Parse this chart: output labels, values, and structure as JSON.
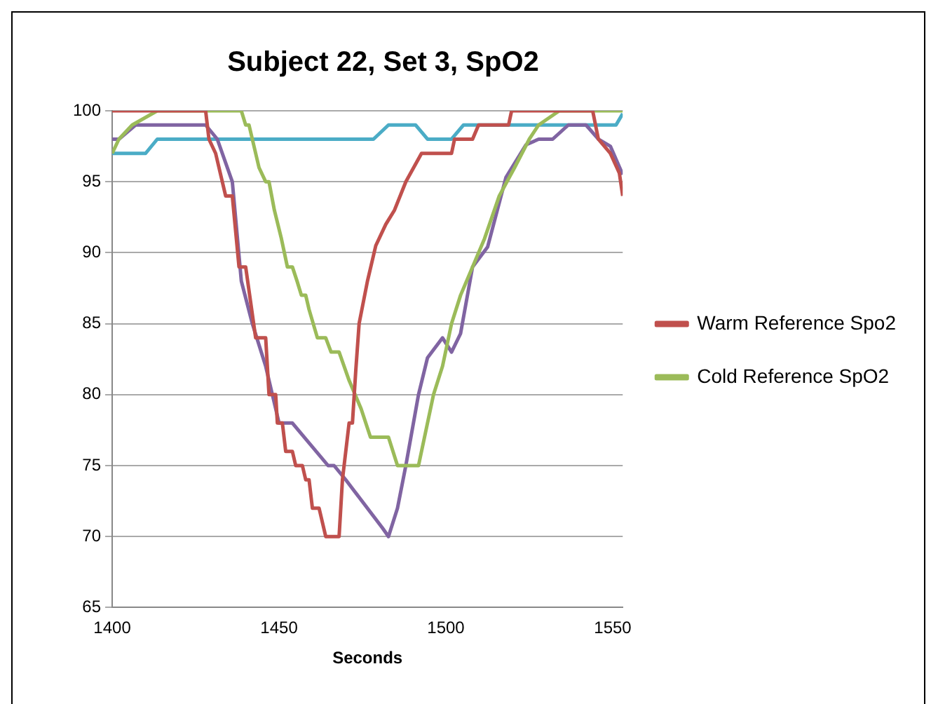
{
  "chart_data": {
    "type": "line",
    "title": "Subject 22, Set 3, SpO2",
    "xlabel": "Seconds",
    "xlim": [
      1400,
      1553
    ],
    "xticks": [
      1400,
      1450,
      1500,
      1550
    ],
    "ylim": [
      65,
      100
    ],
    "yticks": [
      65,
      70,
      75,
      80,
      85,
      90,
      95,
      100
    ],
    "grid": "y",
    "legend": "right",
    "marker": "none",
    "line_style": "solid",
    "series": [
      {
        "name": "Warm Reference Spo2",
        "color": "#c0504d",
        "x": [
          1400,
          1428,
          1429,
          1431,
          1434,
          1436,
          1438,
          1440,
          1443,
          1446,
          1447,
          1449,
          1449.5,
          1451,
          1452,
          1454,
          1455,
          1457,
          1458,
          1459,
          1460,
          1462,
          1464,
          1468,
          1469,
          1471,
          1472,
          1473,
          1474,
          1476.5,
          1479,
          1482,
          1484.6,
          1488,
          1492.7,
          1501.7,
          1502.6,
          1508,
          1509.8,
          1518.8,
          1519.7,
          1544,
          1545.7,
          1549.3,
          1552,
          1553
        ],
        "values": [
          100,
          100,
          98,
          97,
          94,
          94,
          89,
          89,
          84,
          84,
          80,
          80,
          78,
          78,
          76,
          76,
          75,
          75,
          74,
          74,
          72,
          72,
          70,
          70,
          74,
          78,
          78,
          81.7,
          85,
          88,
          90.5,
          92,
          93,
          95,
          97,
          97,
          98,
          98,
          99,
          99,
          100,
          100,
          98,
          97,
          95.6,
          94
        ]
      },
      {
        "name": "Cold Reference SpO2",
        "color": "#9bbb59",
        "x": [
          1400,
          1402,
          1406,
          1413.5,
          1438.7,
          1440,
          1441,
          1442,
          1444,
          1446,
          1447,
          1448.6,
          1450.7,
          1452.5,
          1454,
          1455.4,
          1456.7,
          1458,
          1459,
          1461.5,
          1464,
          1465.6,
          1468,
          1471,
          1474.6,
          1477.4,
          1482.8,
          1485.5,
          1491.8,
          1493.6,
          1496.3,
          1499,
          1501.7,
          1504.4,
          1508,
          1511.6,
          1516,
          1520.6,
          1525,
          1527.8,
          1534,
          1553
        ],
        "values": [
          97,
          98,
          99,
          100,
          100,
          99,
          99,
          98,
          96,
          95,
          95,
          93,
          91,
          89,
          89,
          88,
          87,
          87,
          86,
          84,
          84,
          83,
          83,
          81,
          79,
          77,
          77,
          75,
          75,
          77,
          80,
          82,
          85,
          87,
          89,
          91,
          94,
          96,
          98,
          99,
          100,
          100
        ]
      },
      {
        "color": "#8064a2",
        "x": [
          1400,
          1402,
          1407,
          1428,
          1431.5,
          1436,
          1438.7,
          1442,
          1446,
          1448,
          1450,
          1454,
          1464.7,
          1466.5,
          1470,
          1481,
          1482.8,
          1485.5,
          1488,
          1491.8,
          1494.5,
          1499,
          1501.7,
          1504.4,
          1508,
          1512.5,
          1518,
          1524,
          1527.8,
          1532,
          1536.7,
          1542,
          1545.7,
          1549.3,
          1553
        ],
        "values": [
          98,
          98,
          99,
          99,
          98,
          95,
          88,
          85,
          82,
          80,
          78,
          78,
          75,
          75,
          74,
          70.6,
          70,
          72,
          75,
          80,
          82.6,
          84,
          83,
          84.3,
          89,
          90.4,
          95.3,
          97.6,
          98,
          98,
          99,
          99,
          98,
          97.5,
          95.5
        ]
      },
      {
        "color": "#4bacc6",
        "x": [
          1400,
          1410,
          1413.5,
          1478.3,
          1482.8,
          1490.9,
          1494.5,
          1501.7,
          1505.3,
          1551,
          1553
        ],
        "values": [
          97,
          97,
          98,
          98,
          99,
          99,
          98,
          98,
          99,
          99,
          99.8
        ]
      }
    ]
  }
}
